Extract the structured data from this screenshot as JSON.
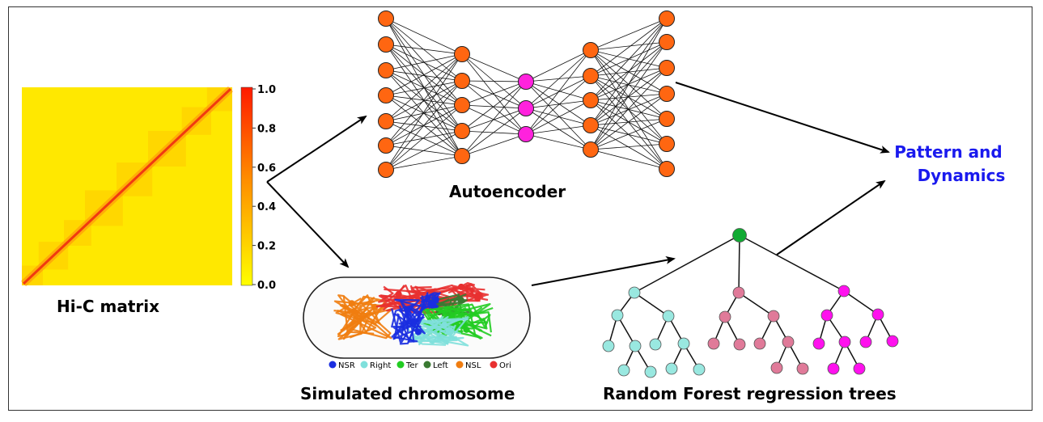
{
  "labels": {
    "hic": "Hi-C matrix",
    "autoencoder": "Autoencoder",
    "chromosome": "Simulated chromosome",
    "forest": "Random Forest regression trees",
    "result_line1": "Pattern and",
    "result_line2": "Dynamics"
  },
  "colorbar": {
    "ticks": [
      "1.0",
      "0.8",
      "0.6",
      "0.4",
      "0.2",
      "0.0"
    ],
    "colors": [
      "#ff1a00",
      "#ffff00"
    ]
  },
  "legend": [
    {
      "label": "NSR",
      "color": "#1a2ee0"
    },
    {
      "label": "Right",
      "color": "#7fe0dc"
    },
    {
      "label": "Ter",
      "color": "#22cc22"
    },
    {
      "label": "Left",
      "color": "#3a7a32"
    },
    {
      "label": "NSL",
      "color": "#f07d10"
    },
    {
      "label": "Ori",
      "color": "#e83030"
    }
  ],
  "colors": {
    "node_orange": "#ff6611",
    "node_magenta": "#ff22dd",
    "root_green": "#11aa33",
    "tree_cyan": "#99e8e0",
    "tree_pink": "#e07a99",
    "tree_magenta": "#ff11ee",
    "result_blue": "#1a1aee"
  },
  "autoencoder_layers": [
    7,
    5,
    3,
    5,
    7
  ]
}
